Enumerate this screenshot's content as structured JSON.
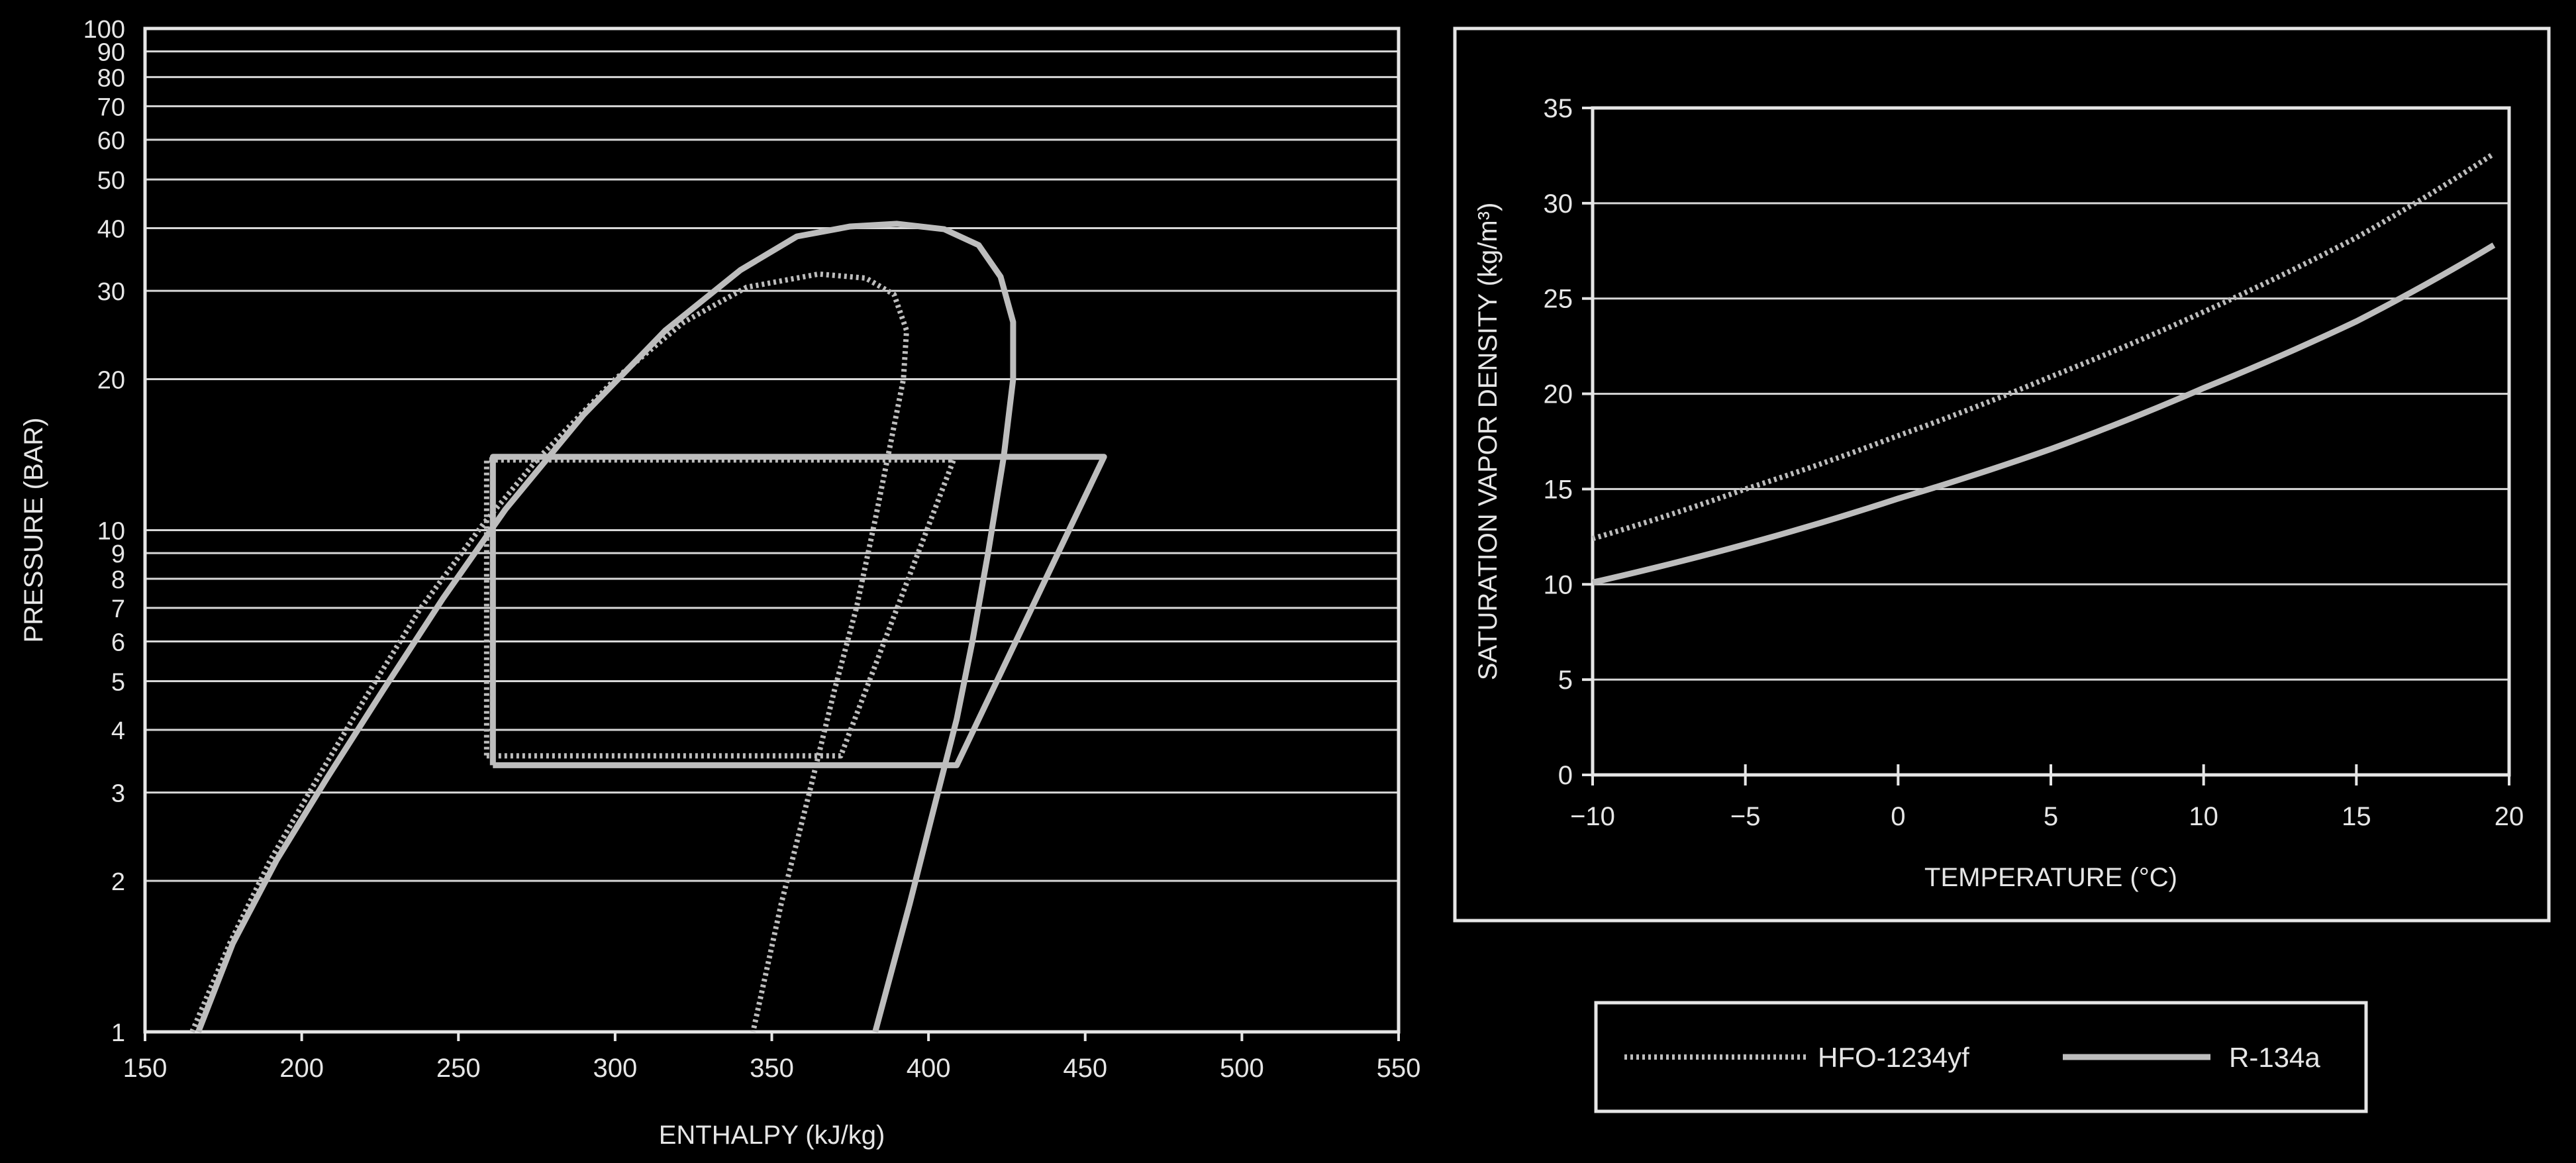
{
  "colors": {
    "background": "#000000",
    "axes": "#e6e6e6",
    "grid": "#d8d8d8",
    "series": "#bdbdbd"
  },
  "legend": {
    "items": [
      {
        "label": "HFO-1234yf",
        "style": "dotted"
      },
      {
        "label": "R-134a",
        "style": "solid"
      }
    ]
  },
  "chart_data": [
    {
      "type": "line",
      "title": "",
      "xlabel": "ENTHALPY (kJ/kg)",
      "ylabel": "PRESSURE (BAR)",
      "xlim": [
        150,
        550
      ],
      "ylim": [
        1,
        100
      ],
      "yscale": "log",
      "grid": "horizontal",
      "xticks": [
        150,
        200,
        250,
        300,
        350,
        400,
        450,
        500,
        550
      ],
      "yticks": [
        1,
        2,
        3,
        4,
        5,
        6,
        7,
        8,
        9,
        10,
        20,
        30,
        40,
        50,
        60,
        70,
        80,
        90,
        100
      ],
      "series": [
        {
          "name": "HFO-1234yf",
          "style": "dotted",
          "dome": [
            [
              165,
              1
            ],
            [
              177,
              1.5
            ],
            [
              190,
              2.2
            ],
            [
              205,
              3.2
            ],
            [
              220,
              4.6
            ],
            [
              238,
              7
            ],
            [
              258,
              10.3
            ],
            [
              275,
              13.8
            ],
            [
              300,
              20
            ],
            [
              322,
              26
            ],
            [
              342,
              30.5
            ],
            [
              365,
              32.4
            ],
            [
              380,
              31.8
            ],
            [
              389,
              29.5
            ],
            [
              393,
              25
            ],
            [
              392,
              20
            ],
            [
              388,
              15
            ],
            [
              383,
              10.5
            ],
            [
              377,
              7
            ],
            [
              370,
              4.8
            ],
            [
              362,
              3
            ],
            [
              353,
              1.8
            ],
            [
              344,
              1
            ]
          ],
          "cycle": [
            [
              259,
              3.55
            ],
            [
              372,
              3.55
            ],
            [
              408,
              13.8
            ],
            [
              259,
              13.8
            ],
            [
              259,
              3.55
            ]
          ]
        },
        {
          "name": "R-134a",
          "style": "solid",
          "dome": [
            [
              167,
              1
            ],
            [
              178,
              1.5
            ],
            [
              192,
              2.2
            ],
            [
              208,
              3.2
            ],
            [
              226,
              4.8
            ],
            [
              245,
              7.3
            ],
            [
              265,
              11
            ],
            [
              290,
              17
            ],
            [
              316,
              25
            ],
            [
              340,
              33
            ],
            [
              358,
              38.5
            ],
            [
              375,
              40.3
            ],
            [
              390,
              40.8
            ],
            [
              405,
              39.8
            ],
            [
              416,
              37
            ],
            [
              423,
              32
            ],
            [
              427,
              26
            ],
            [
              427,
              20
            ],
            [
              424,
              14
            ],
            [
              419,
              9
            ],
            [
              414,
              6
            ],
            [
              409,
              4.2
            ],
            [
              403,
              3
            ],
            [
              394,
              1.8
            ],
            [
              383,
              1
            ]
          ],
          "cycle": [
            [
              261,
              3.4
            ],
            [
              409,
              3.4
            ],
            [
              456,
              14
            ],
            [
              261,
              14
            ],
            [
              261,
              3.4
            ]
          ]
        }
      ]
    },
    {
      "type": "line",
      "title": "",
      "xlabel": "TEMPERATURE (°C)",
      "ylabel": "SATURATION VAPOR DENSITY (kg/m³)",
      "xlim": [
        -10,
        20
      ],
      "ylim": [
        0,
        35
      ],
      "grid": "horizontal",
      "xticks": [
        -10,
        -5,
        0,
        5,
        10,
        15,
        20
      ],
      "ytick_labels": [
        "0",
        "5",
        "10",
        "15",
        "20",
        "25",
        "30",
        "35"
      ],
      "xtick_labels": [
        "−10",
        "−5",
        "0",
        "5",
        "10",
        "15",
        "20"
      ],
      "series": [
        {
          "name": "HFO-1234yf",
          "style": "dotted",
          "x": [
            -10,
            -5,
            0,
            5,
            10,
            15,
            19.5
          ],
          "y": [
            12.4,
            15,
            17.8,
            20.9,
            24.3,
            28.2,
            32.6
          ]
        },
        {
          "name": "R-134a",
          "style": "solid",
          "x": [
            -10,
            -5,
            0,
            5,
            10,
            15,
            19.5
          ],
          "y": [
            10.1,
            12.1,
            14.5,
            17.1,
            20.3,
            23.8,
            27.8
          ]
        }
      ]
    }
  ]
}
